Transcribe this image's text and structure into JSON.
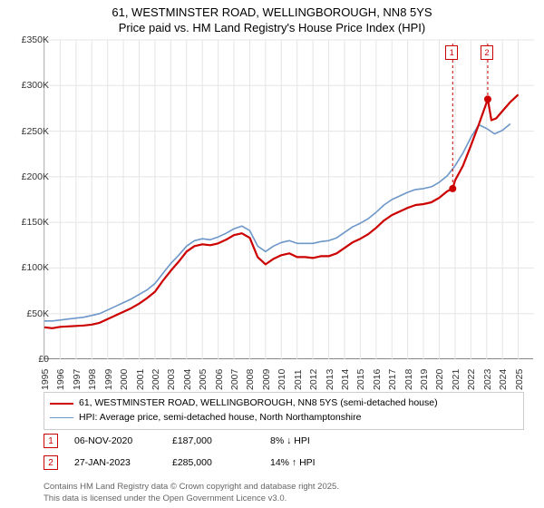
{
  "title": {
    "line1": "61, WESTMINSTER ROAD, WELLINGBOROUGH, NN8 5YS",
    "line2": "Price paid vs. HM Land Registry's House Price Index (HPI)"
  },
  "chart": {
    "type": "line",
    "background_color": "#ffffff",
    "grid_color": "#e5e5e5",
    "x_years": [
      1995,
      1996,
      1997,
      1998,
      1999,
      2000,
      2001,
      2002,
      2003,
      2004,
      2005,
      2006,
      2007,
      2008,
      2009,
      2010,
      2011,
      2012,
      2013,
      2014,
      2015,
      2016,
      2017,
      2018,
      2019,
      2020,
      2021,
      2022,
      2023,
      2024,
      2025
    ],
    "xlim": [
      1995,
      2026
    ],
    "ylim": [
      0,
      350000
    ],
    "ytick_step": 50000,
    "ytick_labels": [
      "£0",
      "£50K",
      "£100K",
      "£150K",
      "£200K",
      "£250K",
      "£300K",
      "£350K"
    ],
    "series": [
      {
        "name": "property",
        "label": "61, WESTMINSTER ROAD, WELLINGBOROUGH, NN8 5YS (semi-detached house)",
        "color": "#cc0000",
        "line_width": 2.2,
        "data": [
          [
            1995,
            35000
          ],
          [
            1995.5,
            34000
          ],
          [
            1996,
            35500
          ],
          [
            1996.5,
            36000
          ],
          [
            1997,
            36500
          ],
          [
            1997.5,
            37000
          ],
          [
            1998,
            38000
          ],
          [
            1998.5,
            40000
          ],
          [
            1999,
            44000
          ],
          [
            1999.5,
            48000
          ],
          [
            2000,
            52000
          ],
          [
            2000.5,
            56000
          ],
          [
            2001,
            61000
          ],
          [
            2001.5,
            67000
          ],
          [
            2002,
            74000
          ],
          [
            2002.5,
            86000
          ],
          [
            2003,
            97000
          ],
          [
            2003.5,
            107000
          ],
          [
            2004,
            118000
          ],
          [
            2004.5,
            124000
          ],
          [
            2005,
            126000
          ],
          [
            2005.5,
            125000
          ],
          [
            2006,
            127000
          ],
          [
            2006.5,
            131000
          ],
          [
            2007,
            136000
          ],
          [
            2007.5,
            138000
          ],
          [
            2008,
            133000
          ],
          [
            2008.5,
            112000
          ],
          [
            2009,
            104000
          ],
          [
            2009.5,
            110000
          ],
          [
            2010,
            114000
          ],
          [
            2010.5,
            116000
          ],
          [
            2011,
            112000
          ],
          [
            2011.5,
            112000
          ],
          [
            2012,
            111000
          ],
          [
            2012.5,
            113000
          ],
          [
            2013,
            113000
          ],
          [
            2013.5,
            116000
          ],
          [
            2014,
            122000
          ],
          [
            2014.5,
            128000
          ],
          [
            2015,
            132000
          ],
          [
            2015.5,
            137000
          ],
          [
            2016,
            144000
          ],
          [
            2016.5,
            152000
          ],
          [
            2017,
            158000
          ],
          [
            2017.5,
            162000
          ],
          [
            2018,
            166000
          ],
          [
            2018.5,
            169000
          ],
          [
            2019,
            170000
          ],
          [
            2019.5,
            172000
          ],
          [
            2020,
            177000
          ],
          [
            2020.5,
            184000
          ],
          [
            2020.85,
            187000
          ],
          [
            2021,
            196000
          ],
          [
            2021.5,
            212000
          ],
          [
            2022,
            234000
          ],
          [
            2022.5,
            257000
          ],
          [
            2023.07,
            285000
          ],
          [
            2023.3,
            262000
          ],
          [
            2023.6,
            264000
          ],
          [
            2024,
            272000
          ],
          [
            2024.5,
            282000
          ],
          [
            2025,
            290000
          ]
        ]
      },
      {
        "name": "hpi",
        "label": "HPI: Average price, semi-detached house, North Northamptonshire",
        "color": "#6d97c9",
        "line_width": 1.6,
        "data": [
          [
            1995,
            42000
          ],
          [
            1995.5,
            42000
          ],
          [
            1996,
            43000
          ],
          [
            1996.5,
            44000
          ],
          [
            1997,
            45000
          ],
          [
            1997.5,
            46000
          ],
          [
            1998,
            48000
          ],
          [
            1998.5,
            50000
          ],
          [
            1999,
            54000
          ],
          [
            1999.5,
            58000
          ],
          [
            2000,
            62000
          ],
          [
            2000.5,
            66000
          ],
          [
            2001,
            71000
          ],
          [
            2001.5,
            76000
          ],
          [
            2002,
            83000
          ],
          [
            2002.5,
            94000
          ],
          [
            2003,
            105000
          ],
          [
            2003.5,
            114000
          ],
          [
            2004,
            124000
          ],
          [
            2004.5,
            130000
          ],
          [
            2005,
            132000
          ],
          [
            2005.5,
            131000
          ],
          [
            2006,
            134000
          ],
          [
            2006.5,
            138000
          ],
          [
            2007,
            143000
          ],
          [
            2007.5,
            146000
          ],
          [
            2008,
            141000
          ],
          [
            2008.5,
            124000
          ],
          [
            2009,
            118000
          ],
          [
            2009.5,
            124000
          ],
          [
            2010,
            128000
          ],
          [
            2010.5,
            130000
          ],
          [
            2011,
            127000
          ],
          [
            2011.5,
            127000
          ],
          [
            2012,
            127000
          ],
          [
            2012.5,
            129000
          ],
          [
            2013,
            130000
          ],
          [
            2013.5,
            133000
          ],
          [
            2014,
            139000
          ],
          [
            2014.5,
            145000
          ],
          [
            2015,
            149000
          ],
          [
            2015.5,
            154000
          ],
          [
            2016,
            161000
          ],
          [
            2016.5,
            169000
          ],
          [
            2017,
            175000
          ],
          [
            2017.5,
            179000
          ],
          [
            2018,
            183000
          ],
          [
            2018.5,
            186000
          ],
          [
            2019,
            187000
          ],
          [
            2019.5,
            189000
          ],
          [
            2020,
            194000
          ],
          [
            2020.5,
            201000
          ],
          [
            2021,
            212000
          ],
          [
            2021.5,
            226000
          ],
          [
            2022,
            243000
          ],
          [
            2022.5,
            257000
          ],
          [
            2023,
            253000
          ],
          [
            2023.5,
            247000
          ],
          [
            2024,
            251000
          ],
          [
            2024.5,
            258000
          ]
        ]
      }
    ],
    "markers": [
      {
        "n": "1",
        "x": 2020.85,
        "y": 187000
      },
      {
        "n": "2",
        "x": 2023.07,
        "y": 285000
      }
    ]
  },
  "legend": {
    "items": [
      {
        "color": "#cc0000",
        "width": 2.2,
        "label": "61, WESTMINSTER ROAD, WELLINGBOROUGH, NN8 5YS (semi-detached house)"
      },
      {
        "color": "#6d97c9",
        "width": 1.6,
        "label": "HPI: Average price, semi-detached house, North Northamptonshire"
      }
    ]
  },
  "sales": [
    {
      "n": "1",
      "date": "06-NOV-2020",
      "price": "£187,000",
      "pct": "8% ↓ HPI"
    },
    {
      "n": "2",
      "date": "27-JAN-2023",
      "price": "£285,000",
      "pct": "14% ↑ HPI"
    }
  ],
  "credits": {
    "line1": "Contains HM Land Registry data © Crown copyright and database right 2025.",
    "line2": "This data is licensed under the Open Government Licence v3.0."
  }
}
